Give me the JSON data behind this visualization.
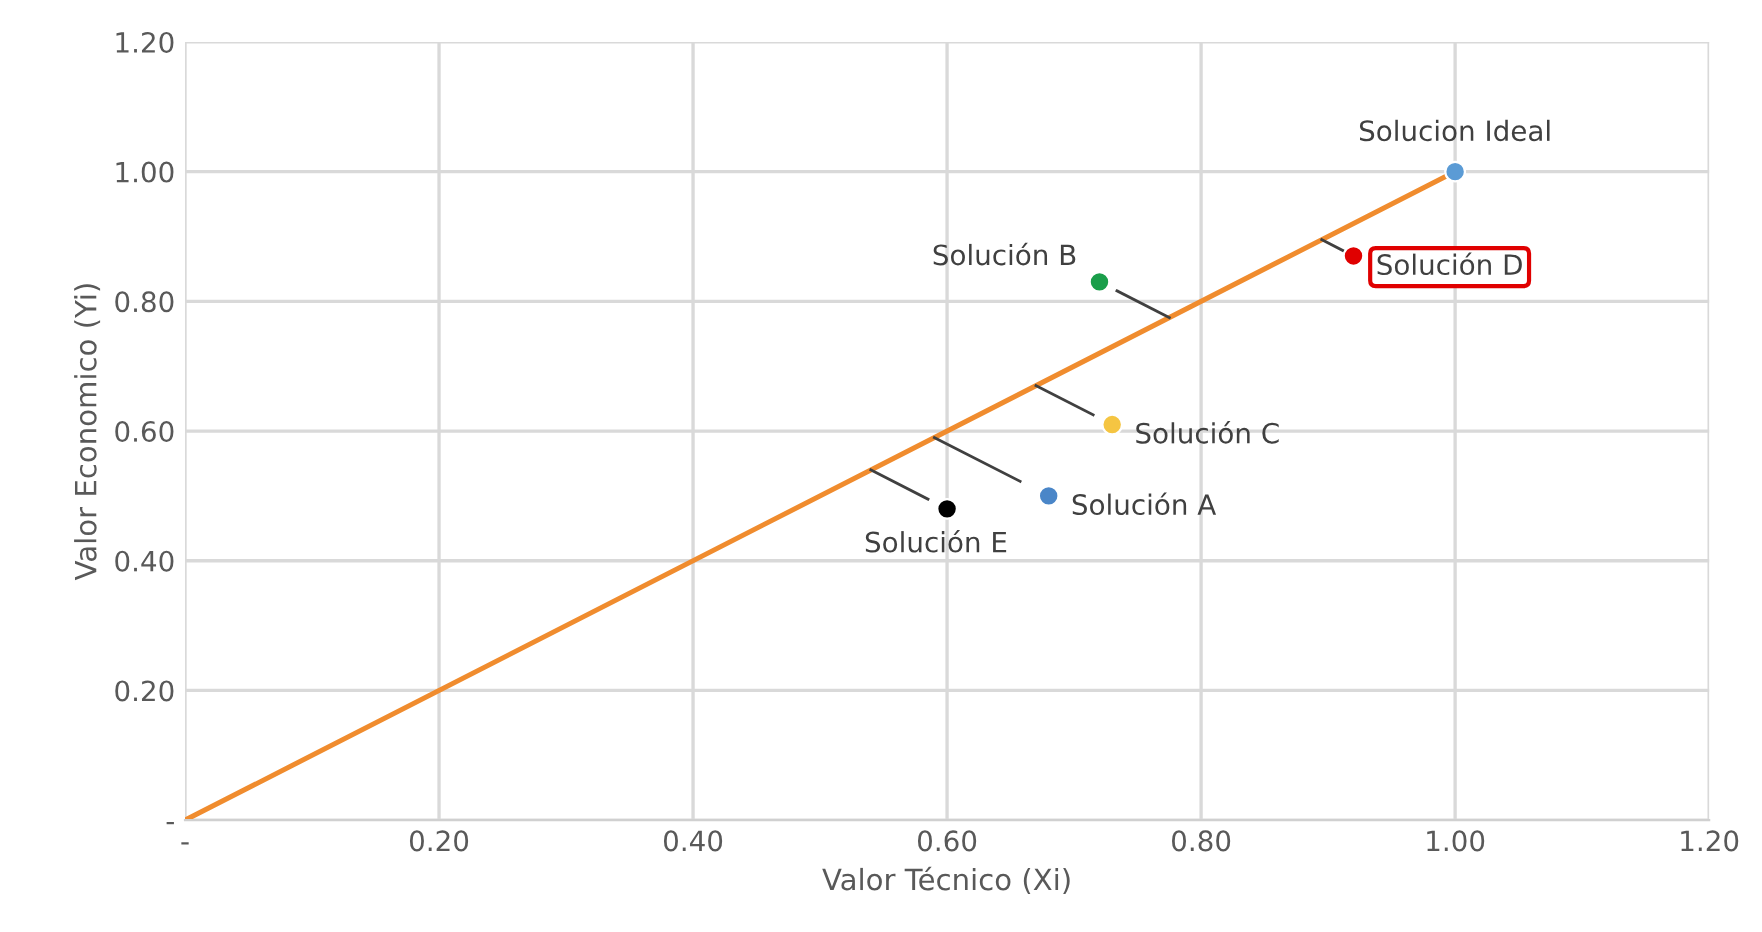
{
  "chart_data": {
    "type": "scatter",
    "xlabel": "Valor Técnico (Xi)",
    "ylabel": "Valor Economico (Yi)",
    "xlim": [
      0,
      1.2
    ],
    "ylim": [
      0,
      1.2
    ],
    "xticks": [
      {
        "value": 0,
        "label": "-"
      },
      {
        "value": 0.2,
        "label": "0.20"
      },
      {
        "value": 0.4,
        "label": "0.40"
      },
      {
        "value": 0.6,
        "label": "0.60"
      },
      {
        "value": 0.8,
        "label": "0.80"
      },
      {
        "value": 1.0,
        "label": "1.00"
      },
      {
        "value": 1.2,
        "label": "1.20"
      }
    ],
    "yticks": [
      {
        "value": 0,
        "label": "-"
      },
      {
        "value": 0.2,
        "label": "0.20"
      },
      {
        "value": 0.4,
        "label": "0.40"
      },
      {
        "value": 0.6,
        "label": "0.60"
      },
      {
        "value": 0.8,
        "label": "0.80"
      },
      {
        "value": 1.0,
        "label": "1.00"
      },
      {
        "value": 1.2,
        "label": "1.20"
      }
    ],
    "grid": true,
    "marker": "circle",
    "series": [
      {
        "type": "line",
        "marker": "none",
        "x": [
          0,
          1.0
        ],
        "values": [
          0,
          1.0
        ],
        "color": "#f08c2e"
      },
      {
        "x": [
          1.0
        ],
        "values": [
          1.0
        ],
        "color": "#5b9bd5"
      },
      {
        "x": [
          0.92
        ],
        "values": [
          0.87
        ],
        "color": "#e00000"
      },
      {
        "x": [
          0.72
        ],
        "values": [
          0.83
        ],
        "color": "#1a9e4a"
      },
      {
        "x": [
          0.73
        ],
        "values": [
          0.61
        ],
        "color": "#f5c542"
      },
      {
        "x": [
          0.68
        ],
        "values": [
          0.5
        ],
        "color": "#4a86c8"
      },
      {
        "x": [
          0.6
        ],
        "values": [
          0.48
        ],
        "color": "#000000"
      }
    ],
    "annotations": [
      {
        "text": "Solucion Ideal",
        "x": 1.0,
        "y": 1.0
      },
      {
        "text": "Solución D",
        "x": 0.92,
        "y": 0.87
      },
      {
        "text": "Solución B",
        "x": 0.72,
        "y": 0.83
      },
      {
        "text": "Solución C",
        "x": 0.73,
        "y": 0.61
      },
      {
        "text": "Solución A",
        "x": 0.68,
        "y": 0.5
      },
      {
        "text": "Solución E",
        "x": 0.6,
        "y": 0.48
      }
    ]
  }
}
